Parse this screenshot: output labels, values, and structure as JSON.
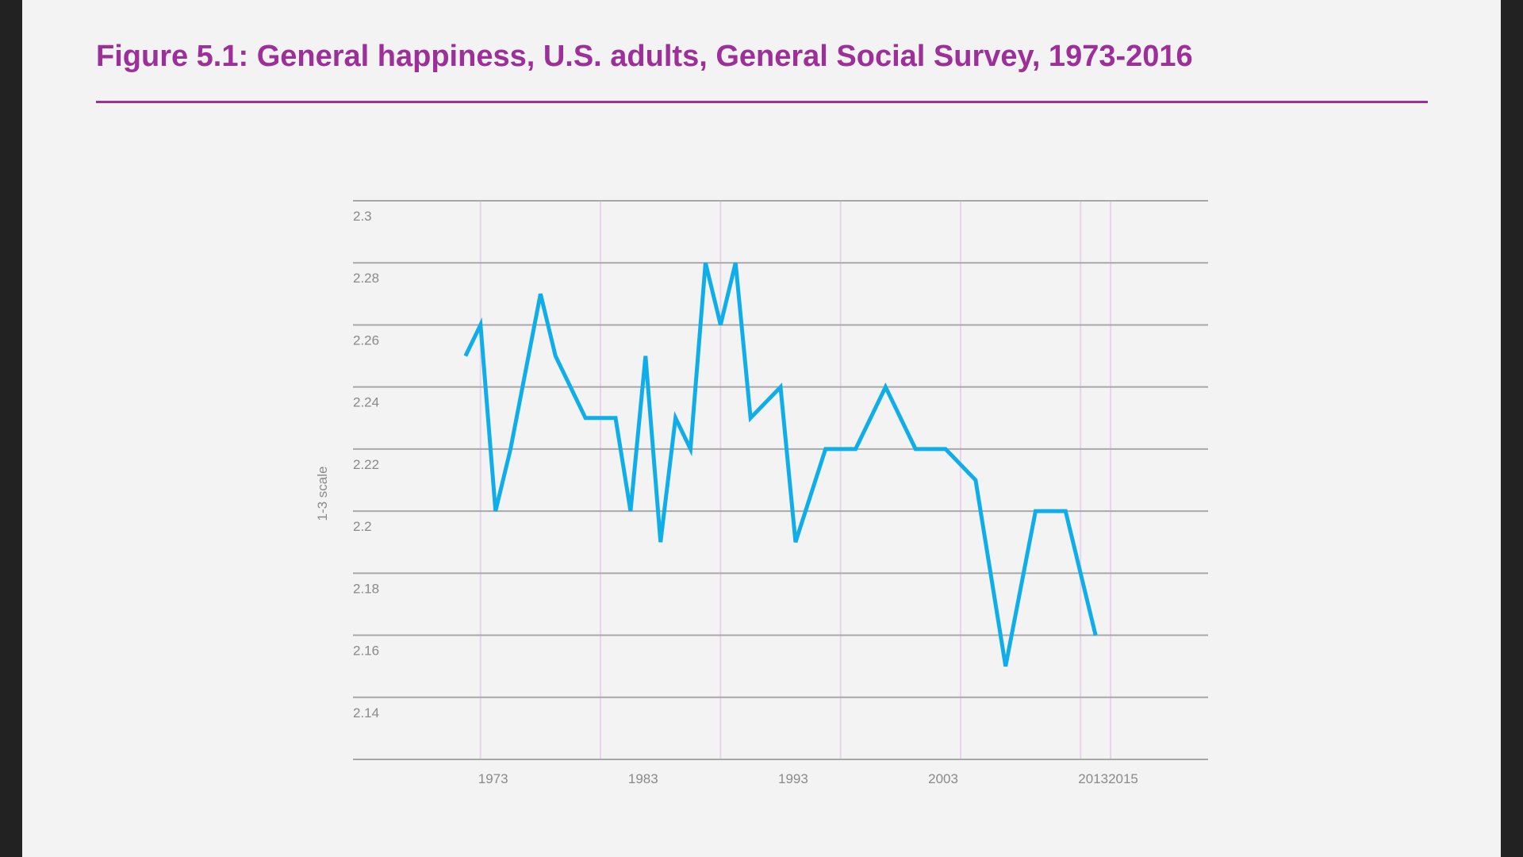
{
  "header": {
    "title": "Figure 5.1: General happiness, U.S. adults, General Social Survey, 1973-2016"
  },
  "colors": {
    "title": "#9c2f98",
    "line": "#10aee8",
    "gridline": "#a8a8a8",
    "vertical_gridline": "#e9d3ea",
    "tick_label": "#8a8a8a",
    "background": "#f3f3f3"
  },
  "chart_data": {
    "type": "line",
    "title": "Figure 5.1: General happiness, U.S. adults, General Social Survey, 1973-2016",
    "xlabel": "",
    "ylabel": "1-3 scale",
    "xlim": [
      1964.5,
      2021.5
    ],
    "ylim": [
      2.12,
      2.3
    ],
    "grid": true,
    "x_ticks": [
      1973,
      1983,
      1993,
      2003,
      2013,
      2015
    ],
    "x_tick_labels": [
      "1973",
      "1983",
      "1993",
      "2003",
      "2013",
      "2015"
    ],
    "vertical_gridlines": [
      1973,
      1981,
      1989,
      1997,
      2005,
      2013,
      2015
    ],
    "y_ticks": [
      2.12,
      2.14,
      2.16,
      2.18,
      2.2,
      2.22,
      2.24,
      2.26,
      2.28,
      2.3
    ],
    "y_tick_labels": [
      "2.14",
      "2.16",
      "2.18",
      "2.2",
      "2.22",
      "2.24",
      "2.26",
      "2.28",
      "2.3"
    ],
    "series": [
      {
        "x": [
          1972,
          1973,
          1974,
          1975,
          1976,
          1977,
          1978,
          1980,
          1982,
          1983,
          1984,
          1985,
          1986,
          1987,
          1988,
          1989,
          1990,
          1991,
          1993,
          1994,
          1996,
          1998,
          2000,
          2002,
          2004,
          2006,
          2008,
          2010,
          2012,
          2014
        ],
        "values": [
          2.25,
          2.26,
          2.2,
          2.22,
          2.245,
          2.27,
          2.25,
          2.23,
          2.23,
          2.2,
          2.25,
          2.19,
          2.23,
          2.22,
          2.28,
          2.26,
          2.28,
          2.23,
          2.24,
          2.19,
          2.22,
          2.22,
          2.24,
          2.22,
          2.22,
          2.21,
          2.15,
          2.2,
          2.2,
          2.16
        ]
      }
    ]
  }
}
